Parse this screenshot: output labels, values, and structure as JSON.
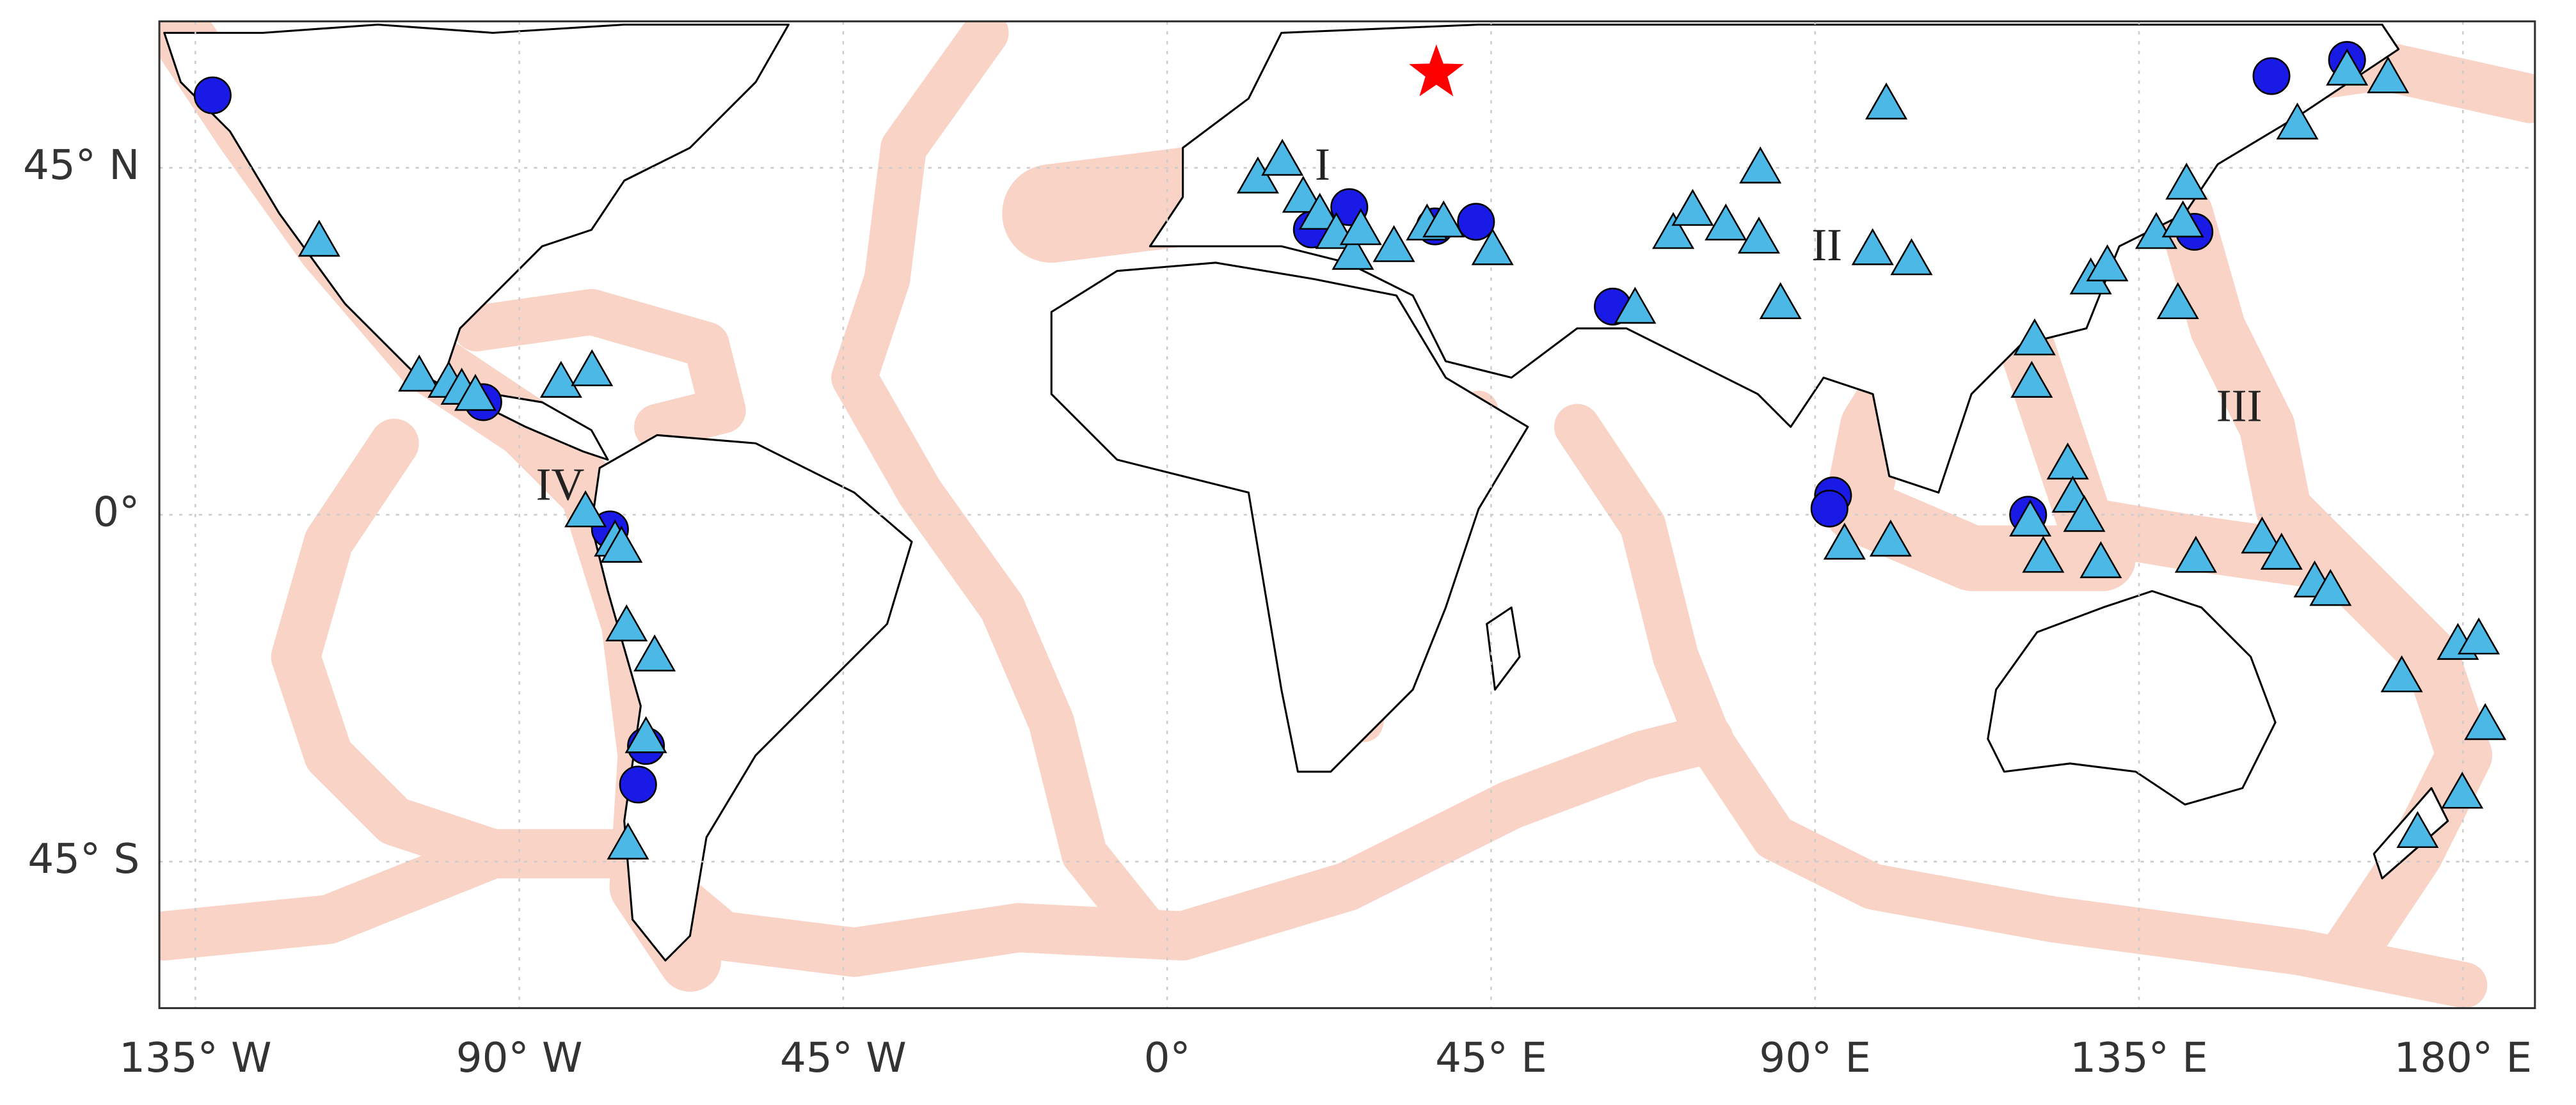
{
  "chart_data": {
    "type": "scatter",
    "xlim": [
      -140,
      190
    ],
    "ylim": [
      -64,
      64
    ],
    "grid": true,
    "xticks": [
      {
        "value": -135,
        "label": "135° W"
      },
      {
        "value": -90,
        "label": "90° W"
      },
      {
        "value": -45,
        "label": "45° W"
      },
      {
        "value": 0,
        "label": "0°"
      },
      {
        "value": 45,
        "label": "45° E"
      },
      {
        "value": 90,
        "label": "90° E"
      },
      {
        "value": 135,
        "label": "135° E"
      },
      {
        "value": 180,
        "label": "180° E"
      }
    ],
    "yticks": [
      {
        "value": 45,
        "label": "45° N"
      },
      {
        "value": 0,
        "label": "0°"
      },
      {
        "value": -45,
        "label": "45° S"
      }
    ],
    "annotations": [
      "I",
      "II",
      "III",
      "IV"
    ],
    "series": [
      {
        "marker": "circle",
        "color": "#1a1ae6",
        "x": [
          -132.6,
          -95,
          -77.4,
          -72.4,
          -73.5,
          20.1,
          25.3,
          37.2,
          42.9,
          61.9,
          92.5,
          92,
          119.6,
          142.7,
          153.4,
          163.9
        ],
        "y": [
          54.4,
          14.6,
          -1.9,
          -30,
          -35,
          37,
          39.9,
          37.4,
          38,
          27,
          2.5,
          0.8,
          0,
          36.7,
          56.9,
          59
        ]
      },
      {
        "marker": "triangle",
        "color": "#4cb8e6",
        "x": [
          -117.8,
          -103.9,
          -99.8,
          -98,
          -96.1,
          -84.2,
          -79.9,
          -80.8,
          -76.7,
          -75.8,
          -75.1,
          -71.2,
          -72.4,
          -74.9,
          12.6,
          16,
          18.9,
          21.2,
          23.5,
          25.8,
          26.9,
          31.5,
          36.1,
          38.4,
          45.2,
          65,
          70.3,
          73,
          77.6,
          82.4,
          82.2,
          85.2,
          98,
          103.4,
          99.9,
          120.5,
          120.1,
          125.1,
          125.8,
          127.4,
          121.7,
          129.7,
          119.9,
          94.1,
          100.5,
          128.3,
          130.6,
          137.4,
          140.4,
          141.6,
          141.1,
          152.1,
          154.8,
          142.9,
          159.4,
          161.6,
          157,
          163.9,
          169.6,
          171.5,
          179.3,
          182.2,
          183.1,
          179.9,
          173.7
        ],
        "y": [
          35.5,
          18,
          17.2,
          16.3,
          15.5,
          17.2,
          18.7,
          0.4,
          -3.4,
          -4.2,
          -14.4,
          -18.3,
          -28.9,
          -42.7,
          43.7,
          46,
          41.2,
          39,
          36.5,
          33.8,
          37,
          34.8,
          37.6,
          38,
          34.4,
          26.8,
          36.5,
          39.5,
          37.6,
          45,
          35.9,
          27.4,
          34.4,
          33.1,
          53.3,
          22.7,
          17.2,
          6.6,
          2.3,
          -0.2,
          -5.5,
          -6.2,
          -0.8,
          -3.8,
          -3.4,
          30.6,
          32.3,
          36.5,
          27.4,
          42.9,
          38,
          -3,
          -5.1,
          -5.5,
          -8.7,
          -9.8,
          50.7,
          57.7,
          56.7,
          -21,
          -16.8,
          -16.1,
          -27.2,
          -36.1,
          -41.2
        ]
      },
      {
        "marker": "star",
        "color": "#ff0000",
        "x": [
          37.4
        ],
        "y": [
          57.3
        ]
      }
    ]
  }
}
